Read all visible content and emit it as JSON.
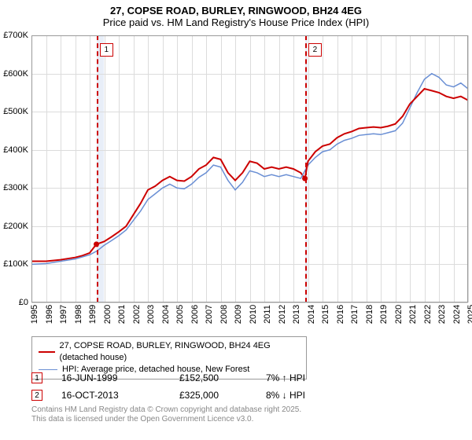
{
  "title": {
    "line1": "27, COPSE ROAD, BURLEY, RINGWOOD, BH24 4EG",
    "line2": "Price paid vs. HM Land Registry's House Price Index (HPI)",
    "fontsize": 13
  },
  "chart": {
    "type": "line",
    "background_color": "#ffffff",
    "grid_color": "#dcdcdc",
    "border_color": "#999999",
    "shade_color": "#e8eef8",
    "x": {
      "min": 1995,
      "max": 2025,
      "tick_step": 1,
      "labels": [
        "1995",
        "1996",
        "1997",
        "1998",
        "1999",
        "2000",
        "2001",
        "2002",
        "2003",
        "2004",
        "2005",
        "2006",
        "2007",
        "2008",
        "2009",
        "2010",
        "2011",
        "2012",
        "2013",
        "2014",
        "2015",
        "2016",
        "2017",
        "2018",
        "2019",
        "2020",
        "2021",
        "2022",
        "2023",
        "2024",
        "2025"
      ],
      "label_fontsize": 11
    },
    "y": {
      "min": 0,
      "max": 700000,
      "tick_step": 100000,
      "labels": [
        "£0",
        "£100K",
        "£200K",
        "£300K",
        "£400K",
        "£500K",
        "£600K",
        "£700K"
      ],
      "label_fontsize": 11
    },
    "shade_bands": [
      {
        "x_from": 1999.46,
        "x_to": 2000
      },
      {
        "x_from": 2013.79,
        "x_to": 2014
      }
    ],
    "markers": [
      {
        "n": "1",
        "x": 1999.46,
        "color": "#cc0000"
      },
      {
        "n": "2",
        "x": 2013.79,
        "color": "#cc0000"
      }
    ],
    "series": [
      {
        "name": "price_paid",
        "color": "#cc0000",
        "width": 2,
        "points": [
          [
            1995,
            108000
          ],
          [
            1996,
            108000
          ],
          [
            1997,
            112000
          ],
          [
            1998,
            118000
          ],
          [
            1998.5,
            123000
          ],
          [
            1999,
            130000
          ],
          [
            1999.46,
            152500
          ],
          [
            2000,
            160000
          ],
          [
            2000.5,
            172000
          ],
          [
            2001,
            185000
          ],
          [
            2001.5,
            200000
          ],
          [
            2002,
            230000
          ],
          [
            2002.5,
            260000
          ],
          [
            2003,
            295000
          ],
          [
            2003.5,
            305000
          ],
          [
            2004,
            320000
          ],
          [
            2004.5,
            330000
          ],
          [
            2005,
            320000
          ],
          [
            2005.5,
            318000
          ],
          [
            2006,
            330000
          ],
          [
            2006.5,
            350000
          ],
          [
            2007,
            360000
          ],
          [
            2007.5,
            380000
          ],
          [
            2008,
            375000
          ],
          [
            2008.5,
            340000
          ],
          [
            2009,
            320000
          ],
          [
            2009.5,
            340000
          ],
          [
            2010,
            370000
          ],
          [
            2010.5,
            365000
          ],
          [
            2011,
            350000
          ],
          [
            2011.5,
            355000
          ],
          [
            2012,
            350000
          ],
          [
            2012.5,
            355000
          ],
          [
            2013,
            350000
          ],
          [
            2013.5,
            340000
          ],
          [
            2013.79,
            325000
          ]
        ],
        "highlight_points": [
          {
            "x": 1999.46,
            "y": 152500
          },
          {
            "x": 2013.79,
            "y": 325000
          }
        ]
      },
      {
        "name": "hpi",
        "color": "#6a8fd4",
        "width": 1.5,
        "points": [
          [
            1995,
            100000
          ],
          [
            1996,
            102000
          ],
          [
            1997,
            108000
          ],
          [
            1998,
            114000
          ],
          [
            1999,
            125000
          ],
          [
            1999.5,
            135000
          ],
          [
            2000,
            150000
          ],
          [
            2000.5,
            162000
          ],
          [
            2001,
            175000
          ],
          [
            2001.5,
            190000
          ],
          [
            2002,
            215000
          ],
          [
            2002.5,
            240000
          ],
          [
            2003,
            270000
          ],
          [
            2003.5,
            285000
          ],
          [
            2004,
            300000
          ],
          [
            2004.5,
            310000
          ],
          [
            2005,
            300000
          ],
          [
            2005.5,
            298000
          ],
          [
            2006,
            310000
          ],
          [
            2006.5,
            328000
          ],
          [
            2007,
            340000
          ],
          [
            2007.5,
            360000
          ],
          [
            2008,
            355000
          ],
          [
            2008.5,
            320000
          ],
          [
            2009,
            295000
          ],
          [
            2009.5,
            315000
          ],
          [
            2010,
            345000
          ],
          [
            2010.5,
            340000
          ],
          [
            2011,
            330000
          ],
          [
            2011.5,
            335000
          ],
          [
            2012,
            330000
          ],
          [
            2012.5,
            335000
          ],
          [
            2013,
            330000
          ],
          [
            2013.5,
            325000
          ],
          [
            2014,
            360000
          ],
          [
            2014.5,
            380000
          ],
          [
            2015,
            395000
          ],
          [
            2015.5,
            400000
          ],
          [
            2016,
            415000
          ],
          [
            2016.5,
            425000
          ],
          [
            2017,
            430000
          ],
          [
            2017.5,
            438000
          ],
          [
            2018,
            440000
          ],
          [
            2018.5,
            442000
          ],
          [
            2019,
            440000
          ],
          [
            2019.5,
            445000
          ],
          [
            2020,
            450000
          ],
          [
            2020.5,
            470000
          ],
          [
            2021,
            510000
          ],
          [
            2021.5,
            550000
          ],
          [
            2022,
            585000
          ],
          [
            2022.5,
            600000
          ],
          [
            2023,
            590000
          ],
          [
            2023.5,
            570000
          ],
          [
            2024,
            565000
          ],
          [
            2024.5,
            575000
          ],
          [
            2025,
            560000
          ]
        ]
      },
      {
        "name": "price_paid_post",
        "color": "#cc0000",
        "width": 2,
        "points": [
          [
            2013.79,
            325000
          ],
          [
            2014,
            370000
          ],
          [
            2014.5,
            395000
          ],
          [
            2015,
            410000
          ],
          [
            2015.5,
            415000
          ],
          [
            2016,
            432000
          ],
          [
            2016.5,
            442000
          ],
          [
            2017,
            448000
          ],
          [
            2017.5,
            456000
          ],
          [
            2018,
            458000
          ],
          [
            2018.5,
            460000
          ],
          [
            2019,
            458000
          ],
          [
            2019.5,
            462000
          ],
          [
            2020,
            468000
          ],
          [
            2020.5,
            488000
          ],
          [
            2021,
            520000
          ],
          [
            2021.5,
            540000
          ],
          [
            2022,
            560000
          ],
          [
            2022.5,
            555000
          ],
          [
            2023,
            550000
          ],
          [
            2023.5,
            540000
          ],
          [
            2024,
            535000
          ],
          [
            2024.5,
            540000
          ],
          [
            2025,
            530000
          ]
        ]
      }
    ]
  },
  "legend": {
    "items": [
      {
        "color": "#cc0000",
        "width": 2,
        "label": "27, COPSE ROAD, BURLEY, RINGWOOD, BH24 4EG (detached house)"
      },
      {
        "color": "#6a8fd4",
        "width": 1.5,
        "label": "HPI: Average price, detached house, New Forest"
      }
    ]
  },
  "sales": [
    {
      "n": "1",
      "date": "16-JUN-1999",
      "price": "£152,500",
      "delta": "7% ↑ HPI"
    },
    {
      "n": "2",
      "date": "16-OCT-2013",
      "price": "£325,000",
      "delta": "8% ↓ HPI"
    }
  ],
  "footer": {
    "line1": "Contains HM Land Registry data © Crown copyright and database right 2025.",
    "line2": "This data is licensed under the Open Government Licence v3.0."
  }
}
